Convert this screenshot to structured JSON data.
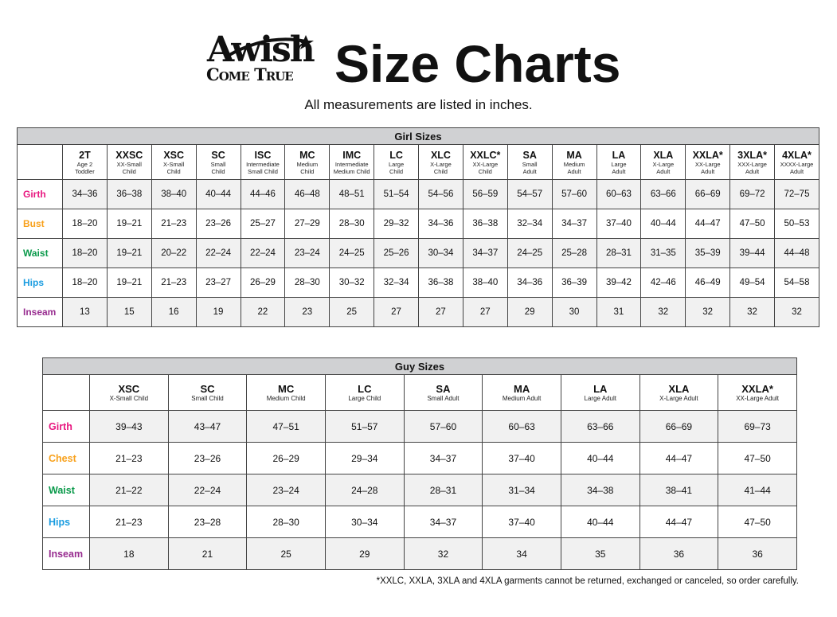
{
  "header": {
    "logo_text_line1": "Awish",
    "logo_text_line2": "Come True",
    "title": "Size Charts",
    "subtitle": "All measurements are listed in inches."
  },
  "colors": {
    "Girth": "#e8167f",
    "Bust": "#f8a11c",
    "Chest": "#f8a11c",
    "Waist": "#0b9a4b",
    "Hips": "#1a9ce0",
    "Inseam": "#982d90",
    "title_bar": "#d0d1d3",
    "alt_row": "#f1f1f1"
  },
  "girl": {
    "title": "Girl Sizes",
    "sizes": [
      {
        "code": "2T",
        "desc": [
          "Age 2",
          "Toddler"
        ]
      },
      {
        "code": "XXSC",
        "desc": [
          "XX-Small",
          "Child"
        ]
      },
      {
        "code": "XSC",
        "desc": [
          "X-Small",
          "Child"
        ]
      },
      {
        "code": "SC",
        "desc": [
          "Small",
          "Child"
        ]
      },
      {
        "code": "ISC",
        "desc": [
          "Intermediate",
          "Small Child"
        ]
      },
      {
        "code": "MC",
        "desc": [
          "Medium",
          "Child"
        ]
      },
      {
        "code": "IMC",
        "desc": [
          "Intermediate",
          "Medium Child"
        ]
      },
      {
        "code": "LC",
        "desc": [
          "Large",
          "Child"
        ]
      },
      {
        "code": "XLC",
        "desc": [
          "X-Large",
          "Child"
        ]
      },
      {
        "code": "XXLC*",
        "desc": [
          "XX-Large",
          "Child"
        ]
      },
      {
        "code": "SA",
        "desc": [
          "Small",
          "Adult"
        ]
      },
      {
        "code": "MA",
        "desc": [
          "Medium",
          "Adult"
        ]
      },
      {
        "code": "LA",
        "desc": [
          "Large",
          "Adult"
        ]
      },
      {
        "code": "XLA",
        "desc": [
          "X-Large",
          "Adult"
        ]
      },
      {
        "code": "XXLA*",
        "desc": [
          "XX-Large",
          "Adult"
        ]
      },
      {
        "code": "3XLA*",
        "desc": [
          "XXX-Large",
          "Adult"
        ]
      },
      {
        "code": "4XLA*",
        "desc": [
          "XXXX-Large",
          "Adult"
        ]
      }
    ],
    "rows": [
      {
        "label": "Girth",
        "values": [
          "34–36",
          "36–38",
          "38–40",
          "40–44",
          "44–46",
          "46–48",
          "48–51",
          "51–54",
          "54–56",
          "56–59",
          "54–57",
          "57–60",
          "60–63",
          "63–66",
          "66–69",
          "69–72",
          "72–75"
        ]
      },
      {
        "label": "Bust",
        "values": [
          "18–20",
          "19–21",
          "21–23",
          "23–26",
          "25–27",
          "27–29",
          "28–30",
          "29–32",
          "34–36",
          "36–38",
          "32–34",
          "34–37",
          "37–40",
          "40–44",
          "44–47",
          "47–50",
          "50–53"
        ]
      },
      {
        "label": "Waist",
        "values": [
          "18–20",
          "19–21",
          "20–22",
          "22–24",
          "22–24",
          "23–24",
          "24–25",
          "25–26",
          "30–34",
          "34–37",
          "24–25",
          "25–28",
          "28–31",
          "31–35",
          "35–39",
          "39–44",
          "44–48"
        ]
      },
      {
        "label": "Hips",
        "values": [
          "18–20",
          "19–21",
          "21–23",
          "23–27",
          "26–29",
          "28–30",
          "30–32",
          "32–34",
          "36–38",
          "38–40",
          "34–36",
          "36–39",
          "39–42",
          "42–46",
          "46–49",
          "49–54",
          "54–58"
        ]
      },
      {
        "label": "Inseam",
        "values": [
          "13",
          "15",
          "16",
          "19",
          "22",
          "23",
          "25",
          "27",
          "27",
          "27",
          "29",
          "30",
          "31",
          "32",
          "32",
          "32",
          "32"
        ]
      }
    ]
  },
  "guy": {
    "title": "Guy Sizes",
    "sizes": [
      {
        "code": "XSC",
        "desc": [
          "X-Small Child"
        ]
      },
      {
        "code": "SC",
        "desc": [
          "Small Child"
        ]
      },
      {
        "code": "MC",
        "desc": [
          "Medium Child"
        ]
      },
      {
        "code": "LC",
        "desc": [
          "Large Child"
        ]
      },
      {
        "code": "SA",
        "desc": [
          "Small Adult"
        ]
      },
      {
        "code": "MA",
        "desc": [
          "Medium Adult"
        ]
      },
      {
        "code": "LA",
        "desc": [
          "Large Adult"
        ]
      },
      {
        "code": "XLA",
        "desc": [
          "X-Large Adult"
        ]
      },
      {
        "code": "XXLA*",
        "desc": [
          "XX-Large Adult"
        ]
      }
    ],
    "rows": [
      {
        "label": "Girth",
        "values": [
          "39–43",
          "43–47",
          "47–51",
          "51–57",
          "57–60",
          "60–63",
          "63–66",
          "66–69",
          "69–73"
        ]
      },
      {
        "label": "Chest",
        "values": [
          "21–23",
          "23–26",
          "26–29",
          "29–34",
          "34–37",
          "37–40",
          "40–44",
          "44–47",
          "47–50"
        ]
      },
      {
        "label": "Waist",
        "values": [
          "21–22",
          "22–24",
          "23–24",
          "24–28",
          "28–31",
          "31–34",
          "34–38",
          "38–41",
          "41–44"
        ]
      },
      {
        "label": "Hips",
        "values": [
          "21–23",
          "23–28",
          "28–30",
          "30–34",
          "34–37",
          "37–40",
          "40–44",
          "44–47",
          "47–50"
        ]
      },
      {
        "label": "Inseam",
        "values": [
          "18",
          "21",
          "25",
          "29",
          "32",
          "34",
          "35",
          "36",
          "36"
        ]
      }
    ]
  },
  "footnote": "*XXLC, XXLA, 3XLA and 4XLA garments cannot be returned, exchanged or canceled, so order carefully."
}
